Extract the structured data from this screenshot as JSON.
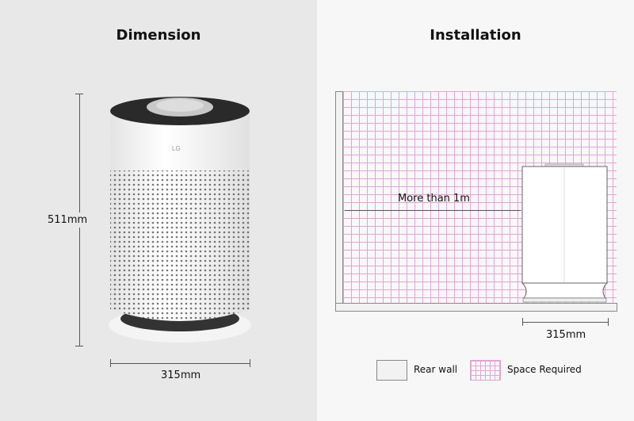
{
  "dimension": {
    "title": "Dimension",
    "height_label": "511mm",
    "width_label": "315mm",
    "brand": "LG"
  },
  "installation": {
    "title": "Installation",
    "clearance_label": "More than 1m",
    "width_label": "315mm"
  },
  "legend": [
    {
      "label": "Rear wall",
      "color": "#f2f2f2"
    },
    {
      "label": "Space Required",
      "color": "#dca8d0"
    }
  ]
}
